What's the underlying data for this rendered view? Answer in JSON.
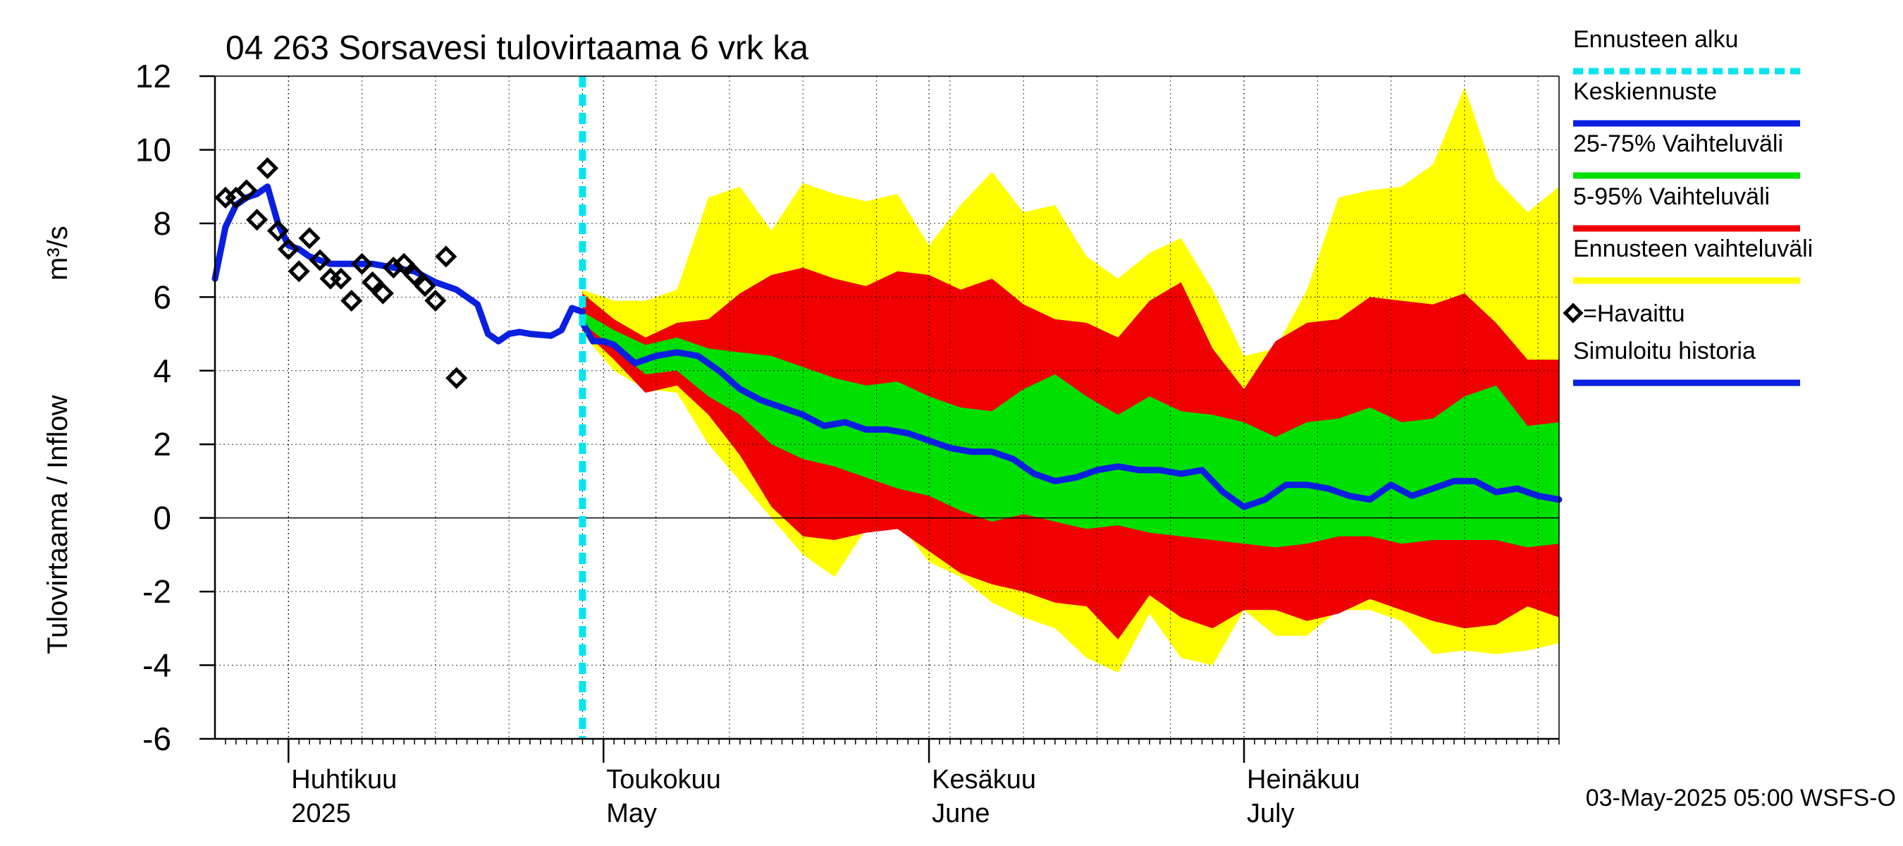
{
  "chart_data": {
    "type": "area",
    "title": "04 263 Sorsavesi tulovirtaama 6 vrk ka",
    "ylabel": "Tulovirtaama / Inflow",
    "yunit": "m³/s",
    "ylim": [
      -6,
      12
    ],
    "yticks": [
      -6,
      -4,
      -2,
      0,
      2,
      4,
      6,
      8,
      10,
      12
    ],
    "xlim": [
      "2025-03-25",
      "2025-07-31"
    ],
    "grid": true,
    "forecast_start": "2025-04-29",
    "x_month_labels": [
      {
        "date": "2025-04-01",
        "fi": "Huhtikuu",
        "en": "2025"
      },
      {
        "date": "2025-05-01",
        "fi": "Toukokuu",
        "en": "May"
      },
      {
        "date": "2025-06-01",
        "fi": "Kesäkuu",
        "en": "June"
      },
      {
        "date": "2025-07-01",
        "fi": "Heinäkuu",
        "en": "July"
      }
    ],
    "legend": {
      "placement": "right",
      "items": [
        {
          "label": "Ennusteen alku",
          "color": "#00e5ee",
          "style": "dashed"
        },
        {
          "label": "Keskiennuste",
          "color": "#0a1fe0",
          "style": "line"
        },
        {
          "label": "25-75% Vaihteluväli",
          "color": "#00e000",
          "style": "line"
        },
        {
          "label": "5-95% Vaihteluväli",
          "color": "#f00000",
          "style": "line"
        },
        {
          "label": "Ennusteen vaihteluväli",
          "color": "#ffff00",
          "style": "line"
        },
        {
          "label": "=Havaittu",
          "color": "#000000",
          "style": "marker"
        },
        {
          "label": "Simuloitu historia",
          "color": "#0a1fe0",
          "style": "line"
        }
      ]
    },
    "timestamp": "03-May-2025 05:00 WSFS-O",
    "series": [
      {
        "name": "Simuloitu historia",
        "color": "#0a1fe0",
        "x": [
          "2025-03-25",
          "2025-03-26",
          "2025-03-27",
          "2025-03-28",
          "2025-03-29",
          "2025-03-30",
          "2025-03-31",
          "2025-04-01",
          "2025-04-02",
          "2025-04-03",
          "2025-04-04",
          "2025-04-05",
          "2025-04-07",
          "2025-04-09",
          "2025-04-11",
          "2025-04-13",
          "2025-04-15",
          "2025-04-17",
          "2025-04-19",
          "2025-04-20",
          "2025-04-21",
          "2025-04-22",
          "2025-04-23",
          "2025-04-24",
          "2025-04-26",
          "2025-04-27",
          "2025-04-28",
          "2025-04-29"
        ],
        "values": [
          6.5,
          7.9,
          8.5,
          8.7,
          8.8,
          9.0,
          8.0,
          7.4,
          7.3,
          7.1,
          7.0,
          6.9,
          6.9,
          6.9,
          6.8,
          6.7,
          6.4,
          6.2,
          5.8,
          5.0,
          4.8,
          5.0,
          5.05,
          5.0,
          4.95,
          5.1,
          5.7,
          5.6
        ]
      },
      {
        "name": "Keskiennuste",
        "color": "#0a1fe0",
        "x": [
          "2025-04-29",
          "2025-04-30",
          "2025-05-01",
          "2025-05-02",
          "2025-05-04",
          "2025-05-06",
          "2025-05-08",
          "2025-05-10",
          "2025-05-12",
          "2025-05-14",
          "2025-05-16",
          "2025-05-18",
          "2025-05-20",
          "2025-05-22",
          "2025-05-24",
          "2025-05-26",
          "2025-05-28",
          "2025-05-30",
          "2025-06-01",
          "2025-06-03",
          "2025-06-05",
          "2025-06-07",
          "2025-06-09",
          "2025-06-11",
          "2025-06-13",
          "2025-06-15",
          "2025-06-17",
          "2025-06-19",
          "2025-06-21",
          "2025-06-23",
          "2025-06-25",
          "2025-06-27",
          "2025-06-29",
          "2025-07-01",
          "2025-07-03",
          "2025-07-05",
          "2025-07-07",
          "2025-07-09",
          "2025-07-11",
          "2025-07-13",
          "2025-07-15",
          "2025-07-17",
          "2025-07-19",
          "2025-07-21",
          "2025-07-23",
          "2025-07-25",
          "2025-07-27",
          "2025-07-29",
          "2025-07-31"
        ],
        "values": [
          5.3,
          4.8,
          4.8,
          4.7,
          4.2,
          4.4,
          4.5,
          4.4,
          4.0,
          3.5,
          3.2,
          3.0,
          2.8,
          2.5,
          2.6,
          2.4,
          2.4,
          2.3,
          2.1,
          1.9,
          1.8,
          1.8,
          1.6,
          1.2,
          1.0,
          1.1,
          1.3,
          1.4,
          1.3,
          1.3,
          1.2,
          1.3,
          0.7,
          0.3,
          0.5,
          0.9,
          0.9,
          0.8,
          0.6,
          0.5,
          0.9,
          0.6,
          0.8,
          1.0,
          1.0,
          0.7,
          0.8,
          0.6,
          0.5
        ]
      },
      {
        "name": "25-75% Vaihteluväli",
        "color": "#00e000",
        "x": [
          "2025-04-29",
          "2025-05-02",
          "2025-05-05",
          "2025-05-08",
          "2025-05-11",
          "2025-05-14",
          "2025-05-17",
          "2025-05-20",
          "2025-05-23",
          "2025-05-26",
          "2025-05-29",
          "2025-06-01",
          "2025-06-04",
          "2025-06-07",
          "2025-06-10",
          "2025-06-13",
          "2025-06-16",
          "2025-06-19",
          "2025-06-22",
          "2025-06-25",
          "2025-06-28",
          "2025-07-01",
          "2025-07-04",
          "2025-07-07",
          "2025-07-10",
          "2025-07-13",
          "2025-07-16",
          "2025-07-19",
          "2025-07-22",
          "2025-07-25",
          "2025-07-28",
          "2025-07-31"
        ],
        "upper": [
          5.6,
          5.1,
          4.7,
          4.9,
          4.6,
          4.5,
          4.4,
          4.1,
          3.8,
          3.6,
          3.7,
          3.3,
          3.0,
          2.9,
          3.5,
          3.9,
          3.3,
          2.8,
          3.3,
          2.9,
          2.8,
          2.6,
          2.2,
          2.6,
          2.7,
          3.0,
          2.6,
          2.7,
          3.3,
          3.6,
          2.5,
          2.6
        ],
        "lower": [
          5.3,
          4.6,
          3.9,
          4.0,
          3.3,
          2.8,
          2.0,
          1.6,
          1.4,
          1.1,
          0.8,
          0.6,
          0.2,
          -0.1,
          0.1,
          -0.1,
          -0.3,
          -0.2,
          -0.4,
          -0.5,
          -0.6,
          -0.7,
          -0.8,
          -0.7,
          -0.5,
          -0.5,
          -0.7,
          -0.6,
          -0.6,
          -0.6,
          -0.8,
          -0.7
        ]
      },
      {
        "name": "5-95% Vaihteluväli",
        "color": "#f00000",
        "x": [
          "2025-04-29",
          "2025-05-02",
          "2025-05-05",
          "2025-05-08",
          "2025-05-11",
          "2025-05-14",
          "2025-05-17",
          "2025-05-20",
          "2025-05-23",
          "2025-05-26",
          "2025-05-29",
          "2025-06-01",
          "2025-06-04",
          "2025-06-07",
          "2025-06-10",
          "2025-06-13",
          "2025-06-16",
          "2025-06-19",
          "2025-06-22",
          "2025-06-25",
          "2025-06-28",
          "2025-07-01",
          "2025-07-04",
          "2025-07-07",
          "2025-07-10",
          "2025-07-13",
          "2025-07-16",
          "2025-07-19",
          "2025-07-22",
          "2025-07-25",
          "2025-07-28",
          "2025-07-31"
        ],
        "upper": [
          6.1,
          5.4,
          4.9,
          5.3,
          5.4,
          6.1,
          6.6,
          6.8,
          6.5,
          6.3,
          6.7,
          6.6,
          6.2,
          6.5,
          5.8,
          5.4,
          5.3,
          4.9,
          5.9,
          6.4,
          4.6,
          3.5,
          4.8,
          5.3,
          5.4,
          6.0,
          5.9,
          5.8,
          6.1,
          5.3,
          4.3,
          4.3
        ],
        "lower": [
          5.1,
          4.3,
          3.4,
          3.6,
          2.8,
          1.7,
          0.3,
          -0.5,
          -0.6,
          -0.4,
          -0.3,
          -0.9,
          -1.5,
          -1.8,
          -2.0,
          -2.3,
          -2.4,
          -3.3,
          -2.1,
          -2.7,
          -3.0,
          -2.5,
          -2.5,
          -2.8,
          -2.6,
          -2.2,
          -2.5,
          -2.8,
          -3.0,
          -2.9,
          -2.4,
          -2.7
        ]
      },
      {
        "name": "Ennusteen vaihteluväli",
        "color": "#ffff00",
        "x": [
          "2025-04-29",
          "2025-05-02",
          "2025-05-05",
          "2025-05-08",
          "2025-05-11",
          "2025-05-14",
          "2025-05-17",
          "2025-05-20",
          "2025-05-23",
          "2025-05-26",
          "2025-05-29",
          "2025-06-01",
          "2025-06-04",
          "2025-06-07",
          "2025-06-10",
          "2025-06-13",
          "2025-06-16",
          "2025-06-19",
          "2025-06-22",
          "2025-06-25",
          "2025-06-28",
          "2025-07-01",
          "2025-07-04",
          "2025-07-07",
          "2025-07-10",
          "2025-07-13",
          "2025-07-16",
          "2025-07-19",
          "2025-07-22",
          "2025-07-25",
          "2025-07-28",
          "2025-07-31"
        ],
        "upper": [
          6.2,
          5.9,
          5.9,
          6.2,
          8.7,
          9.0,
          7.8,
          9.1,
          8.8,
          8.6,
          8.8,
          7.4,
          8.5,
          9.4,
          8.3,
          8.5,
          7.1,
          6.5,
          7.2,
          7.6,
          6.2,
          4.4,
          4.6,
          6.2,
          8.7,
          8.9,
          9.0,
          9.6,
          11.7,
          9.2,
          8.3,
          9.0
        ],
        "lower": [
          5.0,
          4.0,
          3.5,
          3.4,
          2.0,
          1.0,
          0.0,
          -1.0,
          -1.6,
          -0.3,
          -0.1,
          -1.2,
          -1.6,
          -2.3,
          -2.7,
          -3.0,
          -3.8,
          -4.2,
          -2.6,
          -3.8,
          -4.0,
          -2.5,
          -3.2,
          -3.2,
          -2.5,
          -2.5,
          -2.8,
          -3.7,
          -3.6,
          -3.7,
          -3.6,
          -3.4
        ]
      },
      {
        "name": "=Havaittu",
        "color": "#000000",
        "x": [
          "2025-03-26",
          "2025-03-27",
          "2025-03-28",
          "2025-03-29",
          "2025-03-30",
          "2025-03-31",
          "2025-04-01",
          "2025-04-02",
          "2025-04-03",
          "2025-04-04",
          "2025-04-05",
          "2025-04-06",
          "2025-04-07",
          "2025-04-08",
          "2025-04-09",
          "2025-04-10",
          "2025-04-11",
          "2025-04-12",
          "2025-04-13",
          "2025-04-14",
          "2025-04-15",
          "2025-04-16",
          "2025-04-17",
          "2025-04-18",
          "2025-04-19",
          "2025-04-20",
          "2025-04-21"
        ],
        "values": [
          8.7,
          8.7,
          8.9,
          8.1,
          9.5,
          7.8,
          7.3,
          6.7,
          7.6,
          7.0,
          6.5,
          6.5,
          5.9,
          6.9,
          6.4,
          6.1,
          6.8,
          6.9,
          6.6,
          6.3,
          5.9,
          7.1,
          3.8,
          null,
          null,
          null,
          null
        ]
      }
    ]
  }
}
